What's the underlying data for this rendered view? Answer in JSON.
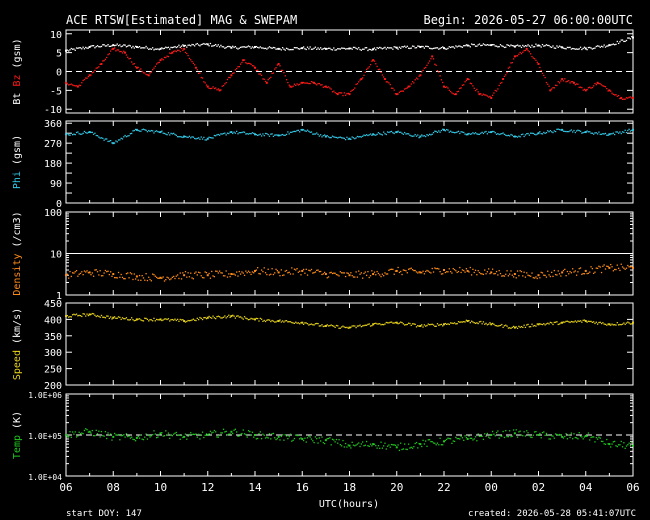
{
  "header": {
    "title": "ACE RTSW[Estimated] MAG & SWEPAM",
    "begin": "Begin: 2026-05-27 06:00:00UTC"
  },
  "footer": {
    "start_doy": "start DOY: 147",
    "created": "created: 2026-05-28 05:41:07UTC"
  },
  "colors": {
    "background": "#000000",
    "axes": "#ffffff",
    "bt": "#ffffff",
    "bz": "#ff1a1a",
    "phi": "#33c8e6",
    "density": "#ff8c1a",
    "speed": "#e6d21a",
    "temp": "#1ec81e"
  },
  "chart_data": [
    {
      "type": "scatter",
      "id": "mag",
      "ylabel_parts": [
        {
          "text": "Bt",
          "color": "#ffffff"
        },
        {
          "text": " ",
          "color": "#ffffff"
        },
        {
          "text": "Bz",
          "color": "#ff1a1a"
        },
        {
          "text": " (gsm)",
          "color": "#ffffff"
        }
      ],
      "ylim": [
        -11,
        11
      ],
      "yticks": [
        -10,
        -5,
        0,
        5,
        10
      ],
      "yticklabels": [
        "-10",
        "-5",
        "0",
        "5",
        "10"
      ],
      "dashed_line_at": 0,
      "series": [
        {
          "color": "#ffffff",
          "x_hours": [
            0,
            1,
            2,
            3,
            4,
            5,
            6,
            7,
            8,
            9,
            10,
            11,
            12,
            13,
            14,
            15,
            16,
            17,
            18,
            19,
            20,
            21,
            22,
            23,
            24
          ],
          "values": [
            5.5,
            6.5,
            7.0,
            6.5,
            6.0,
            6.8,
            7.2,
            6.3,
            6.5,
            6.0,
            6.2,
            6.0,
            6.1,
            5.9,
            6.3,
            6.5,
            6.2,
            6.9,
            7.0,
            6.6,
            6.9,
            6.4,
            6.1,
            7.0,
            9.0
          ]
        },
        {
          "color": "#ff1a1a",
          "x_hours": [
            0,
            0.5,
            1,
            1.5,
            2,
            2.5,
            3,
            3.5,
            4,
            4.5,
            5,
            5.5,
            6,
            6.5,
            7,
            7.5,
            8,
            8.5,
            9,
            9.5,
            10,
            10.5,
            11,
            11.5,
            12,
            12.5,
            13,
            13.5,
            14,
            14.5,
            15,
            15.5,
            16,
            16.5,
            17,
            17.5,
            18,
            18.5,
            19,
            19.5,
            20,
            20.5,
            21,
            21.5,
            22,
            22.5,
            23,
            23.5,
            24
          ],
          "values": [
            -3,
            -4,
            -1,
            2,
            6,
            5,
            1,
            -1,
            3,
            5,
            6,
            1,
            -4,
            -5,
            -1,
            3,
            1,
            -3,
            2,
            -4,
            -3,
            -3,
            -4,
            -6,
            -6,
            -2,
            3,
            -2,
            -6,
            -4,
            -1,
            4,
            -4,
            -6,
            -2,
            -6,
            -7,
            -2,
            4,
            6,
            2,
            -5,
            -2,
            -3,
            -5,
            -3,
            -5,
            -7,
            -7
          ]
        }
      ]
    },
    {
      "type": "scatter",
      "id": "phi",
      "ylabel_parts": [
        {
          "text": "Phi",
          "color": "#33c8e6"
        },
        {
          "text": " (gsm)",
          "color": "#ffffff"
        }
      ],
      "ylim": [
        0,
        370
      ],
      "yticks": [
        0,
        45,
        90,
        135,
        180,
        225,
        270,
        315,
        360
      ],
      "yticklabels": [
        "0",
        "90",
        "180",
        "270",
        "360"
      ],
      "yticklabel_values": [
        0,
        90,
        180,
        270,
        360
      ],
      "series": [
        {
          "color": "#33c8e6",
          "x_hours": [
            0,
            1,
            2,
            3,
            4,
            5,
            6,
            7,
            8,
            9,
            10,
            11,
            12,
            13,
            14,
            15,
            16,
            17,
            18,
            19,
            20,
            21,
            22,
            23,
            24
          ],
          "values": [
            310,
            320,
            270,
            330,
            320,
            300,
            290,
            320,
            310,
            305,
            330,
            300,
            290,
            310,
            320,
            300,
            330,
            310,
            320,
            300,
            315,
            330,
            320,
            310,
            330
          ]
        }
      ]
    },
    {
      "type": "scatter",
      "id": "density",
      "ylabel_parts": [
        {
          "text": "Density",
          "color": "#ff8c1a"
        },
        {
          "text": " (/cm3)",
          "color": "#ffffff"
        }
      ],
      "yscale": "log",
      "ylim": [
        1,
        100
      ],
      "yticklabels": [
        "1",
        "10",
        "100"
      ],
      "yticklabel_values": [
        1,
        10,
        100
      ],
      "series": [
        {
          "color": "#ff8c1a",
          "x_hours": [
            0,
            1,
            2,
            3,
            4,
            5,
            6,
            7,
            8,
            9,
            10,
            11,
            12,
            13,
            14,
            15,
            16,
            17,
            18,
            19,
            20,
            21,
            22,
            23,
            24
          ],
          "values": [
            3.0,
            3.5,
            3.2,
            2.8,
            2.6,
            3.0,
            3.0,
            3.2,
            3.8,
            3.5,
            3.8,
            3.2,
            3.0,
            3.2,
            3.8,
            3.5,
            4.0,
            3.8,
            3.5,
            3.2,
            3.0,
            3.5,
            3.8,
            4.5,
            4.5
          ]
        }
      ]
    },
    {
      "type": "scatter",
      "id": "speed",
      "ylabel_parts": [
        {
          "text": "Speed",
          "color": "#e6d21a"
        },
        {
          "text": " (km/s)",
          "color": "#ffffff"
        }
      ],
      "ylim": [
        200,
        450
      ],
      "yticklabels": [
        "200",
        "250",
        "300",
        "350",
        "400",
        "450"
      ],
      "yticklabel_values": [
        200,
        250,
        300,
        350,
        400,
        450
      ],
      "series": [
        {
          "color": "#e6d21a",
          "x_hours": [
            0,
            1,
            2,
            3,
            4,
            5,
            6,
            7,
            8,
            9,
            10,
            11,
            12,
            13,
            14,
            15,
            16,
            17,
            18,
            19,
            20,
            21,
            22,
            23,
            24
          ],
          "values": [
            410,
            415,
            405,
            400,
            400,
            395,
            405,
            410,
            400,
            395,
            390,
            380,
            375,
            385,
            390,
            380,
            385,
            395,
            385,
            375,
            385,
            390,
            395,
            385,
            390
          ]
        }
      ]
    },
    {
      "type": "scatter",
      "id": "temp",
      "ylabel_parts": [
        {
          "text": "Temp",
          "color": "#1ec81e"
        },
        {
          "text": " (K)",
          "color": "#ffffff"
        }
      ],
      "yscale": "log",
      "ylim": [
        10000,
        1000000
      ],
      "yticklabels": [
        "1.0E+04",
        "1.0E+05",
        "1.0E+06"
      ],
      "yticklabel_values": [
        10000,
        100000,
        1000000
      ],
      "dashed_line_at": 100000,
      "series": [
        {
          "color": "#1ec81e",
          "x_hours": [
            0,
            1,
            2,
            3,
            4,
            5,
            6,
            7,
            8,
            9,
            10,
            11,
            12,
            13,
            14,
            15,
            16,
            17,
            18,
            19,
            20,
            21,
            22,
            23,
            24
          ],
          "values": [
            100000,
            120000,
            90000,
            85000,
            110000,
            90000,
            100000,
            120000,
            100000,
            90000,
            80000,
            75000,
            55000,
            60000,
            50000,
            60000,
            70000,
            80000,
            100000,
            110000,
            100000,
            90000,
            95000,
            60000,
            55000
          ]
        }
      ]
    }
  ],
  "xaxis": {
    "label": "UTC(hours)",
    "start_hour": 6,
    "span_hours": 24,
    "ticklabels": [
      "06",
      "08",
      "10",
      "12",
      "14",
      "16",
      "18",
      "20",
      "22",
      "00",
      "02",
      "04",
      "06"
    ]
  }
}
